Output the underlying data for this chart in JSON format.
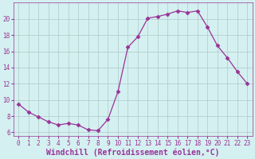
{
  "x": [
    0,
    1,
    2,
    3,
    4,
    5,
    6,
    7,
    8,
    9,
    10,
    11,
    12,
    13,
    14,
    15,
    16,
    17,
    18,
    19,
    20,
    21,
    22,
    23
  ],
  "y": [
    9.5,
    8.5,
    7.9,
    7.3,
    6.9,
    7.1,
    6.9,
    6.3,
    6.2,
    7.6,
    11.0,
    16.5,
    17.8,
    20.1,
    20.3,
    20.6,
    21.0,
    20.8,
    21.0,
    19.0,
    16.7,
    15.2,
    13.5,
    12.0
  ],
  "line_color": "#993399",
  "marker": "D",
  "marker_size": 2.5,
  "bg_color": "#d4f0f0",
  "grid_color": "#b0c8c8",
  "xlabel": "Windchill (Refroidissement éolien,°C)",
  "ylabel": "",
  "xlim": [
    -0.5,
    23.5
  ],
  "ylim": [
    5.5,
    22.0
  ],
  "yticks": [
    6,
    8,
    10,
    12,
    14,
    16,
    18,
    20
  ],
  "xticks": [
    0,
    1,
    2,
    3,
    4,
    5,
    6,
    7,
    8,
    9,
    10,
    11,
    12,
    13,
    14,
    15,
    16,
    17,
    18,
    19,
    20,
    21,
    22,
    23
  ],
  "font_color": "#993399",
  "tick_fontsize": 5.5,
  "label_fontsize": 7.0,
  "linewidth": 0.9
}
